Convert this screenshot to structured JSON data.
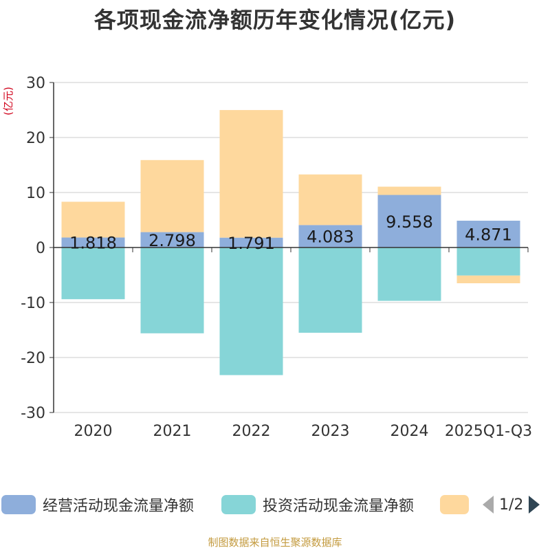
{
  "chart_data": {
    "type": "bar",
    "stacked": true,
    "title": "各项现金流净额历年变化情况(亿元)",
    "ylabel": "(亿元)",
    "xlabel": "",
    "categories": [
      "2020",
      "2021",
      "2022",
      "2023",
      "2024",
      "2025Q1-Q3"
    ],
    "ylim": [
      -30,
      30
    ],
    "yticks": [
      30,
      20,
      10,
      0,
      -10,
      -20,
      -30
    ],
    "grid": true,
    "series": [
      {
        "name": "经营活动现金流量净额",
        "color": "#8eaedb",
        "values": [
          1.818,
          2.798,
          1.791,
          4.083,
          9.558,
          4.871
        ],
        "labels": [
          "1.818",
          "2.798",
          "1.791",
          "4.083",
          "9.558",
          "4.871"
        ]
      },
      {
        "name": "投资活动现金流量净额",
        "color": "#86d5d7",
        "values": [
          -9.4,
          -15.6,
          -23.2,
          -15.5,
          -9.7,
          -5.1
        ]
      },
      {
        "name": "",
        "color": "#fed89d",
        "values": [
          6.5,
          13.1,
          23.2,
          9.2,
          1.5,
          -1.4
        ]
      }
    ]
  },
  "legend": {
    "items": [
      "经营活动现金流量净额",
      "投资活动现金流量净额",
      ""
    ],
    "page": "1/2"
  },
  "source": "制图数据来自恒生聚源数据库"
}
